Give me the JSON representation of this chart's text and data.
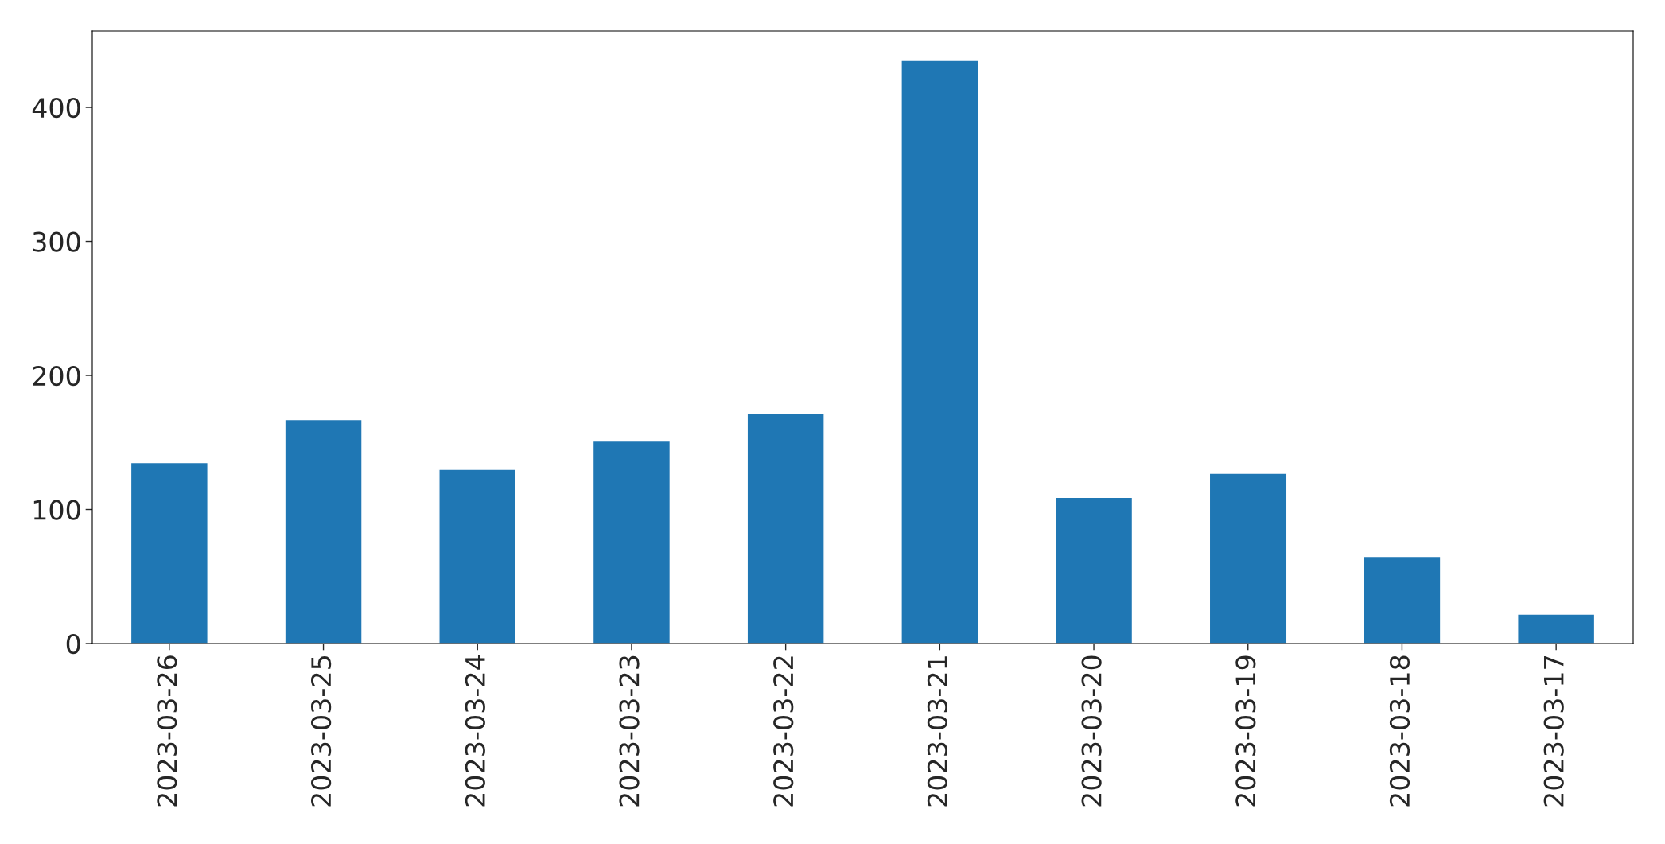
{
  "chart_data": {
    "type": "bar",
    "categories": [
      "2023-03-26",
      "2023-03-25",
      "2023-03-24",
      "2023-03-23",
      "2023-03-22",
      "2023-03-21",
      "2023-03-20",
      "2023-03-19",
      "2023-03-18",
      "2023-03-17"
    ],
    "values": [
      135,
      167,
      130,
      151,
      172,
      435,
      109,
      127,
      65,
      22
    ],
    "color": "#1f77b4",
    "ylim": [
      0,
      457
    ],
    "yticks": [
      0,
      100,
      200,
      300,
      400
    ],
    "grid": false,
    "legend": false
  }
}
